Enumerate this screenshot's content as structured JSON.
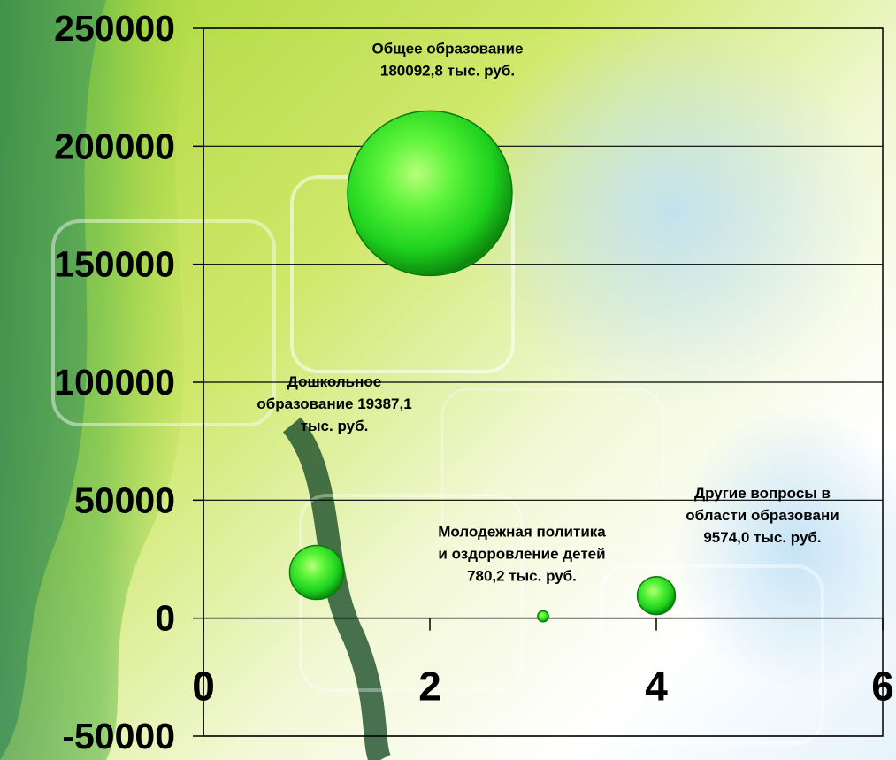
{
  "chart_data": {
    "type": "bubble",
    "title": "",
    "xlabel": "",
    "ylabel": "",
    "xlim": [
      0,
      6
    ],
    "ylim": [
      -50000,
      250000
    ],
    "x_ticks": [
      "0",
      "2",
      "4",
      "6"
    ],
    "y_ticks": [
      "250000",
      "200000",
      "150000",
      "100000",
      "50000",
      "0",
      "-50000"
    ],
    "grid": "horizontal",
    "points": [
      {
        "x": 1,
        "y": 19387.1,
        "size": 19387.1,
        "label_lines": [
          "Дошкольное",
          "образование 19387,1",
          "тыс. руб."
        ]
      },
      {
        "x": 2,
        "y": 180092.8,
        "size": 180092.8,
        "label_lines": [
          "Общее образование",
          "180092,8 тыс. руб."
        ]
      },
      {
        "x": 3,
        "y": 780.2,
        "size": 780.2,
        "label_lines": [
          "Молодежная политика",
          "и оздоровление детей",
          "780,2 тыс. руб."
        ]
      },
      {
        "x": 4,
        "y": 9574.0,
        "size": 9574.0,
        "label_lines": [
          "Другие вопросы в",
          "области образовани",
          "9574,0 тыс. руб."
        ]
      }
    ],
    "colors": {
      "bubble_light": "#9cff6a",
      "bubble_mid": "#22dd22",
      "bubble_dark": "#0a7a0a",
      "gridline": "#000000",
      "axis": "#000000"
    }
  }
}
